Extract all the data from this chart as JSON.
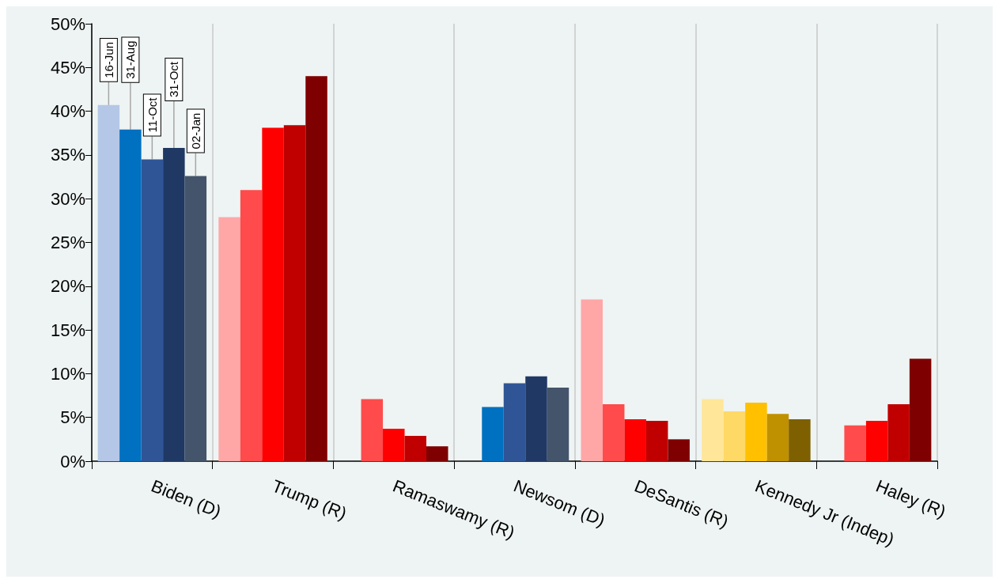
{
  "chart_data": {
    "type": "bar",
    "categories": [
      "Biden (D)",
      "Trump (R)",
      "Ramaswamy (R)",
      "Newsom (D)",
      "DeSantis (R)",
      "Kennedy Jr (Indep)",
      "Haley (R)"
    ],
    "series": [
      {
        "name": "16-Jun",
        "values": [
          40.7,
          27.9,
          null,
          null,
          18.5,
          7.1,
          null
        ],
        "colors": [
          "#b4c7e7",
          "#ffa7a7",
          null,
          null,
          "#ffa7a7",
          "#ffe699",
          null
        ]
      },
      {
        "name": "31-Aug",
        "values": [
          37.9,
          31.0,
          7.1,
          6.2,
          6.5,
          5.7,
          4.1
        ],
        "colors": [
          "#0070c0",
          "#ff4b4b",
          "#ff4b4b",
          "#0070c0",
          "#ff4b4b",
          "#ffd966",
          "#ff4b4b"
        ]
      },
      {
        "name": "11-Oct",
        "values": [
          34.5,
          38.1,
          3.7,
          8.9,
          4.8,
          6.7,
          4.6
        ],
        "colors": [
          "#2f5597",
          "#ff0000",
          "#ff0000",
          "#2f5597",
          "#ff0000",
          "#ffc000",
          "#ff0000"
        ]
      },
      {
        "name": "31-Oct",
        "values": [
          35.8,
          38.4,
          2.9,
          9.7,
          4.6,
          5.4,
          6.5
        ],
        "colors": [
          "#203864",
          "#c00000",
          "#c00000",
          "#203864",
          "#c00000",
          "#bf9000",
          "#c00000"
        ]
      },
      {
        "name": "02-Jan",
        "values": [
          32.6,
          44.0,
          1.7,
          8.4,
          2.5,
          4.8,
          11.7
        ],
        "colors": [
          "#44546a",
          "#7f0000",
          "#7f0000",
          "#44546a",
          "#7f0000",
          "#7f6000",
          "#7f0000"
        ]
      }
    ],
    "ylim": [
      0,
      50
    ],
    "yticks": [
      {
        "value": 0,
        "label": "0%"
      },
      {
        "value": 5,
        "label": "5%"
      },
      {
        "value": 10,
        "label": "10%"
      },
      {
        "value": 15,
        "label": "15%"
      },
      {
        "value": 20,
        "label": "20%"
      },
      {
        "value": 25,
        "label": "25%"
      },
      {
        "value": 30,
        "label": "30%"
      },
      {
        "value": 35,
        "label": "35%"
      },
      {
        "value": 40,
        "label": "40%"
      },
      {
        "value": 45,
        "label": "45%"
      },
      {
        "value": 50,
        "label": "50%"
      }
    ],
    "grid": "x",
    "legend": false
  }
}
